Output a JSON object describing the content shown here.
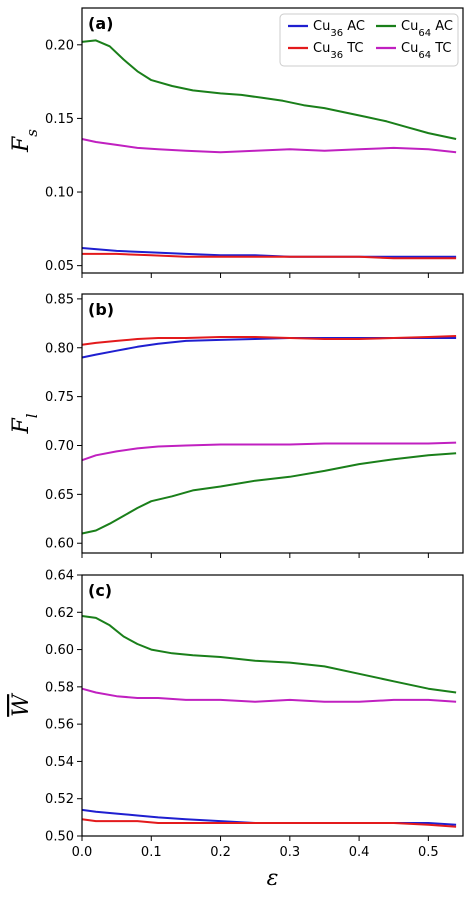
{
  "colors": {
    "Cu36 AC": "#1f1fd0",
    "Cu36 TC": "#e31a1c",
    "Cu64 AC": "#1a7f1a",
    "Cu64 TC": "#c020c0"
  },
  "chart_data": [
    {
      "type": "line",
      "panel_label": "(a)",
      "ylabel_main": "F",
      "ylabel_sub": "s",
      "xlim": [
        0.0,
        0.55
      ],
      "ylim": [
        0.045,
        0.225
      ],
      "xticks": [
        0.0,
        0.1,
        0.2,
        0.3,
        0.4,
        0.5
      ],
      "xtick_labels_shown": false,
      "yticks": [
        0.05,
        0.1,
        0.15,
        0.2
      ],
      "ytick_labels": [
        "0.05",
        "0.10",
        "0.15",
        "0.20"
      ],
      "legend": {
        "placement": "top-right",
        "entries": [
          {
            "main": "Cu",
            "sub": "36",
            "suffix": " AC",
            "series": "Cu36 AC"
          },
          {
            "main": "Cu",
            "sub": "64",
            "suffix": " AC",
            "series": "Cu64 AC"
          },
          {
            "main": "Cu",
            "sub": "36",
            "suffix": " TC",
            "series": "Cu36 TC"
          },
          {
            "main": "Cu",
            "sub": "64",
            "suffix": " TC",
            "series": "Cu64 TC"
          }
        ]
      },
      "series": [
        {
          "name": "Cu64 AC",
          "x": [
            0.0,
            0.02,
            0.04,
            0.06,
            0.08,
            0.1,
            0.13,
            0.16,
            0.2,
            0.23,
            0.26,
            0.29,
            0.32,
            0.35,
            0.38,
            0.41,
            0.44,
            0.47,
            0.5,
            0.54
          ],
          "y": [
            0.202,
            0.203,
            0.199,
            0.19,
            0.182,
            0.176,
            0.172,
            0.169,
            0.167,
            0.166,
            0.164,
            0.162,
            0.159,
            0.157,
            0.154,
            0.151,
            0.148,
            0.144,
            0.14,
            0.136
          ]
        },
        {
          "name": "Cu64 TC",
          "x": [
            0.0,
            0.02,
            0.05,
            0.08,
            0.11,
            0.15,
            0.2,
            0.25,
            0.3,
            0.35,
            0.4,
            0.45,
            0.5,
            0.54
          ],
          "y": [
            0.136,
            0.134,
            0.132,
            0.13,
            0.129,
            0.128,
            0.127,
            0.128,
            0.129,
            0.128,
            0.129,
            0.13,
            0.129,
            0.127
          ]
        },
        {
          "name": "Cu36 AC",
          "x": [
            0.0,
            0.05,
            0.1,
            0.15,
            0.2,
            0.25,
            0.3,
            0.35,
            0.4,
            0.45,
            0.5,
            0.54
          ],
          "y": [
            0.062,
            0.06,
            0.059,
            0.058,
            0.057,
            0.057,
            0.056,
            0.056,
            0.056,
            0.056,
            0.056,
            0.056
          ]
        },
        {
          "name": "Cu36 TC",
          "x": [
            0.0,
            0.05,
            0.1,
            0.15,
            0.2,
            0.25,
            0.3,
            0.35,
            0.4,
            0.45,
            0.5,
            0.54
          ],
          "y": [
            0.058,
            0.058,
            0.057,
            0.056,
            0.056,
            0.056,
            0.056,
            0.056,
            0.056,
            0.055,
            0.055,
            0.055
          ]
        }
      ]
    },
    {
      "type": "line",
      "panel_label": "(b)",
      "ylabel_main": "F",
      "ylabel_sub": "l",
      "xlim": [
        0.0,
        0.55
      ],
      "ylim": [
        0.59,
        0.855
      ],
      "xticks": [
        0.0,
        0.1,
        0.2,
        0.3,
        0.4,
        0.5
      ],
      "xtick_labels_shown": false,
      "yticks": [
        0.6,
        0.65,
        0.7,
        0.75,
        0.8,
        0.85
      ],
      "ytick_labels": [
        "0.60",
        "0.65",
        "0.70",
        "0.75",
        "0.80",
        "0.85"
      ],
      "series": [
        {
          "name": "Cu36 AC",
          "x": [
            0.0,
            0.02,
            0.05,
            0.08,
            0.11,
            0.15,
            0.2,
            0.25,
            0.3,
            0.35,
            0.4,
            0.45,
            0.5,
            0.54
          ],
          "y": [
            0.79,
            0.793,
            0.797,
            0.801,
            0.804,
            0.807,
            0.808,
            0.809,
            0.81,
            0.81,
            0.81,
            0.81,
            0.81,
            0.81
          ]
        },
        {
          "name": "Cu36 TC",
          "x": [
            0.0,
            0.02,
            0.05,
            0.08,
            0.11,
            0.15,
            0.2,
            0.25,
            0.3,
            0.35,
            0.4,
            0.45,
            0.5,
            0.54
          ],
          "y": [
            0.803,
            0.805,
            0.807,
            0.809,
            0.81,
            0.81,
            0.811,
            0.811,
            0.81,
            0.809,
            0.809,
            0.81,
            0.811,
            0.812
          ]
        },
        {
          "name": "Cu64 TC",
          "x": [
            0.0,
            0.02,
            0.05,
            0.08,
            0.11,
            0.15,
            0.2,
            0.25,
            0.3,
            0.35,
            0.4,
            0.45,
            0.5,
            0.54
          ],
          "y": [
            0.685,
            0.69,
            0.694,
            0.697,
            0.699,
            0.7,
            0.701,
            0.701,
            0.701,
            0.702,
            0.702,
            0.702,
            0.702,
            0.703
          ]
        },
        {
          "name": "Cu64 AC",
          "x": [
            0.0,
            0.02,
            0.04,
            0.06,
            0.08,
            0.1,
            0.13,
            0.16,
            0.2,
            0.25,
            0.3,
            0.35,
            0.4,
            0.45,
            0.5,
            0.54
          ],
          "y": [
            0.61,
            0.613,
            0.62,
            0.628,
            0.636,
            0.643,
            0.648,
            0.654,
            0.658,
            0.664,
            0.668,
            0.674,
            0.681,
            0.686,
            0.69,
            0.692
          ]
        }
      ]
    },
    {
      "type": "line",
      "panel_label": "(c)",
      "ylabel_main": "W",
      "ylabel_sub": "",
      "ylabel_overline": true,
      "xlabel": "ε",
      "xlim": [
        0.0,
        0.55
      ],
      "ylim": [
        0.5,
        0.64
      ],
      "xticks": [
        0.0,
        0.1,
        0.2,
        0.3,
        0.4,
        0.5
      ],
      "xtick_labels": [
        "0.0",
        "0.1",
        "0.2",
        "0.3",
        "0.4",
        "0.5"
      ],
      "xtick_labels_shown": true,
      "yticks": [
        0.5,
        0.52,
        0.54,
        0.56,
        0.58,
        0.6,
        0.62,
        0.64
      ],
      "ytick_labels": [
        "0.50",
        "0.52",
        "0.54",
        "0.56",
        "0.58",
        "0.60",
        "0.62",
        "0.64"
      ],
      "series": [
        {
          "name": "Cu64 AC",
          "x": [
            0.0,
            0.02,
            0.04,
            0.06,
            0.08,
            0.1,
            0.13,
            0.16,
            0.2,
            0.25,
            0.3,
            0.35,
            0.4,
            0.45,
            0.5,
            0.54
          ],
          "y": [
            0.618,
            0.617,
            0.613,
            0.607,
            0.603,
            0.6,
            0.598,
            0.597,
            0.596,
            0.594,
            0.593,
            0.591,
            0.587,
            0.583,
            0.579,
            0.577
          ]
        },
        {
          "name": "Cu64 TC",
          "x": [
            0.0,
            0.02,
            0.05,
            0.08,
            0.11,
            0.15,
            0.2,
            0.25,
            0.3,
            0.35,
            0.4,
            0.45,
            0.5,
            0.54
          ],
          "y": [
            0.579,
            0.577,
            0.575,
            0.574,
            0.574,
            0.573,
            0.573,
            0.572,
            0.573,
            0.572,
            0.572,
            0.573,
            0.573,
            0.572
          ]
        },
        {
          "name": "Cu36 AC",
          "x": [
            0.0,
            0.02,
            0.05,
            0.08,
            0.11,
            0.15,
            0.2,
            0.25,
            0.3,
            0.35,
            0.4,
            0.45,
            0.5,
            0.54
          ],
          "y": [
            0.514,
            0.513,
            0.512,
            0.511,
            0.51,
            0.509,
            0.508,
            0.507,
            0.507,
            0.507,
            0.507,
            0.507,
            0.507,
            0.506
          ]
        },
        {
          "name": "Cu36 TC",
          "x": [
            0.0,
            0.02,
            0.05,
            0.08,
            0.11,
            0.15,
            0.2,
            0.25,
            0.3,
            0.35,
            0.4,
            0.45,
            0.5,
            0.54
          ],
          "y": [
            0.509,
            0.508,
            0.508,
            0.508,
            0.507,
            0.507,
            0.507,
            0.507,
            0.507,
            0.507,
            0.507,
            0.507,
            0.506,
            0.505
          ]
        }
      ]
    }
  ]
}
